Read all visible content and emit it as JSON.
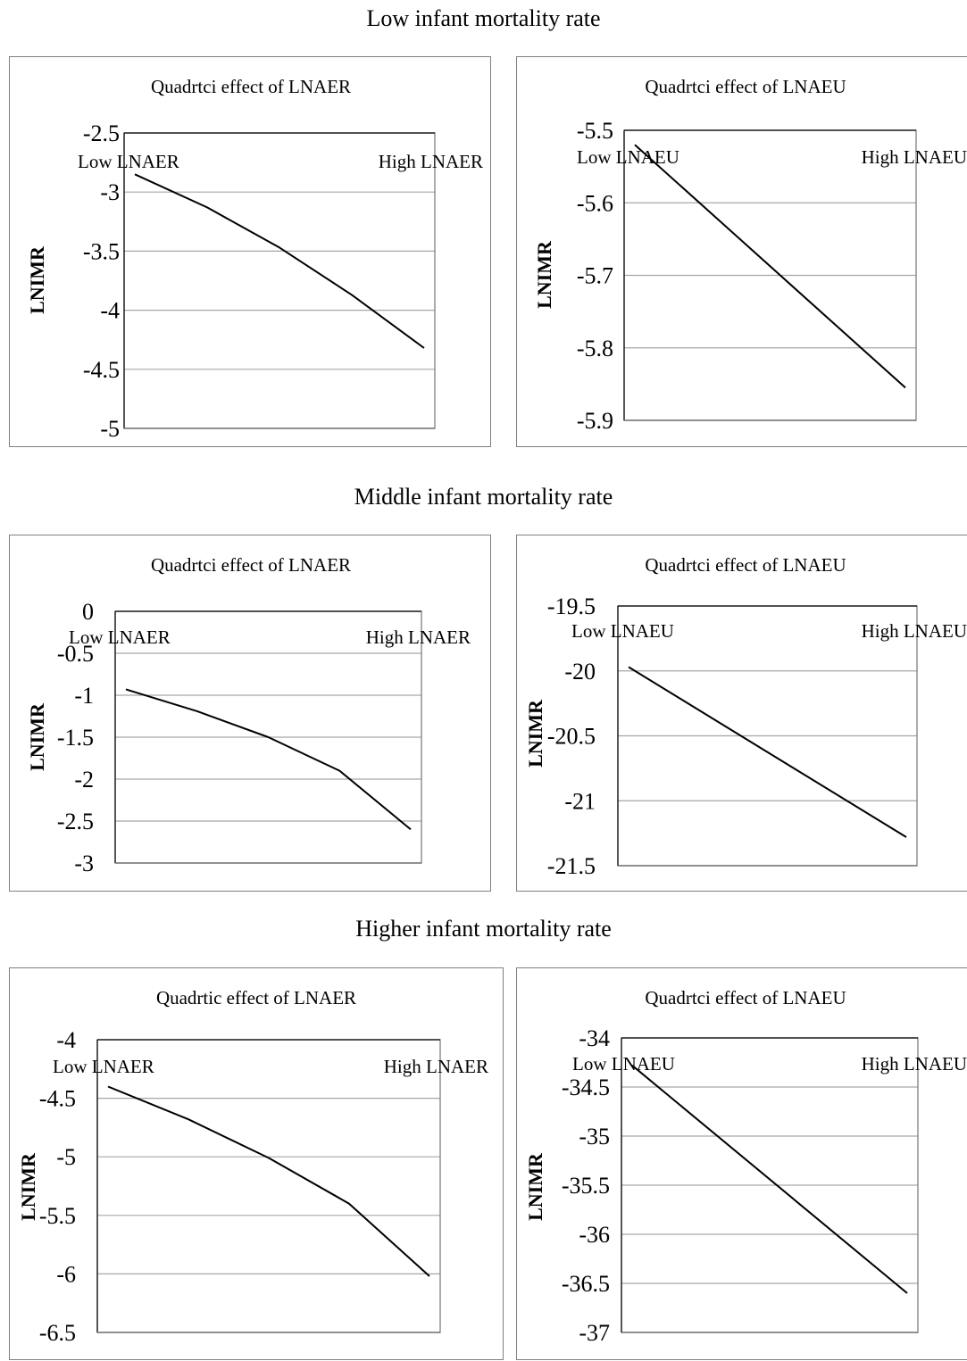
{
  "figure": {
    "section_titles": [
      "Low infant mortality rate",
      "Middle infant mortality rate",
      "Higher infant mortality rate"
    ]
  },
  "chart_data": [
    {
      "type": "line",
      "section": 0,
      "title": "Quadrtci effect of LNAER",
      "ylabel": "LNIMR",
      "ylim": [
        -5,
        -2.5
      ],
      "yticks": [
        -2.5,
        -3,
        -3.5,
        -4,
        -4.5,
        -5
      ],
      "ytick_labels": [
        "-2.5",
        "-3",
        "-3.5",
        "-4",
        "-4.5",
        "-5"
      ],
      "categories": [
        "Low LNAER",
        "High LNAER"
      ],
      "series": [
        {
          "x": [
            0,
            0.25,
            0.5,
            0.75,
            1
          ],
          "values": [
            -2.85,
            -3.13,
            -3.47,
            -3.87,
            -4.32
          ]
        }
      ]
    },
    {
      "type": "line",
      "section": 0,
      "title": "Quadrtci effect of LNAEU",
      "ylabel": "LNIMR",
      "ylim": [
        -5.9,
        -5.5
      ],
      "yticks": [
        -5.5,
        -5.6,
        -5.7,
        -5.8,
        -5.9
      ],
      "ytick_labels": [
        "-5.5",
        "-5.6",
        "-5.7",
        "-5.8",
        "-5.9"
      ],
      "categories": [
        "Low LNAEU",
        "High LNAEU"
      ],
      "series": [
        {
          "x": [
            0,
            1
          ],
          "values": [
            -5.52,
            -5.855
          ]
        }
      ]
    },
    {
      "type": "line",
      "section": 1,
      "title": "Quadrtci effect of LNAER",
      "ylabel": "LNIMR",
      "ylim": [
        -3,
        0
      ],
      "yticks": [
        0,
        -0.5,
        -1,
        -1.5,
        -2,
        -2.5,
        -3
      ],
      "ytick_labels": [
        "0",
        "-0.5",
        "-1",
        "-1.5",
        "-2",
        "-2.5",
        "-3"
      ],
      "categories": [
        "Low LNAER",
        "High LNAER"
      ],
      "series": [
        {
          "x": [
            0,
            0.25,
            0.5,
            0.75,
            1
          ],
          "values": [
            -0.93,
            -1.19,
            -1.5,
            -1.9,
            -2.6
          ]
        }
      ]
    },
    {
      "type": "line",
      "section": 1,
      "title": "Quadrtci effect of LNAEU",
      "ylabel": "LNIMR",
      "ylim": [
        -21.5,
        -19.5
      ],
      "yticks": [
        -19.5,
        -20,
        -20.5,
        -21,
        -21.5
      ],
      "ytick_labels": [
        "-19.5",
        "-20",
        "-20.5",
        "-21",
        "-21.5"
      ],
      "categories": [
        "Low LNAEU",
        "High LNAEU"
      ],
      "series": [
        {
          "x": [
            0,
            1
          ],
          "values": [
            -19.97,
            -21.28
          ]
        }
      ]
    },
    {
      "type": "line",
      "section": 2,
      "title": "Quadrtic effect of LNAER",
      "ylabel": "LNIMR",
      "ylim": [
        -6.5,
        -4
      ],
      "yticks": [
        -4,
        -4.5,
        -5,
        -5.5,
        -6,
        -6.5
      ],
      "ytick_labels": [
        "-4",
        "-4.5",
        "-5",
        "-5.5",
        "-6",
        "-6.5"
      ],
      "categories": [
        "Low LNAER",
        "High LNAER"
      ],
      "series": [
        {
          "x": [
            0,
            0.25,
            0.5,
            0.75,
            1
          ],
          "values": [
            -4.4,
            -4.68,
            -5.01,
            -5.4,
            -6.02
          ]
        }
      ]
    },
    {
      "type": "line",
      "section": 2,
      "title": "Quadrtci effect of LNAEU",
      "ylabel": "LNIMR",
      "ylim": [
        -37,
        -34
      ],
      "yticks": [
        -34,
        -34.5,
        -35,
        -35.5,
        -36,
        -36.5,
        -37
      ],
      "ytick_labels": [
        "-34",
        "-34.5",
        "-35",
        "-35.5",
        "-36",
        "-36.5",
        "-37"
      ],
      "categories": [
        "Low LNAEU",
        "High LNAEU"
      ],
      "series": [
        {
          "x": [
            0,
            1
          ],
          "values": [
            -34.28,
            -36.6
          ]
        }
      ]
    }
  ]
}
